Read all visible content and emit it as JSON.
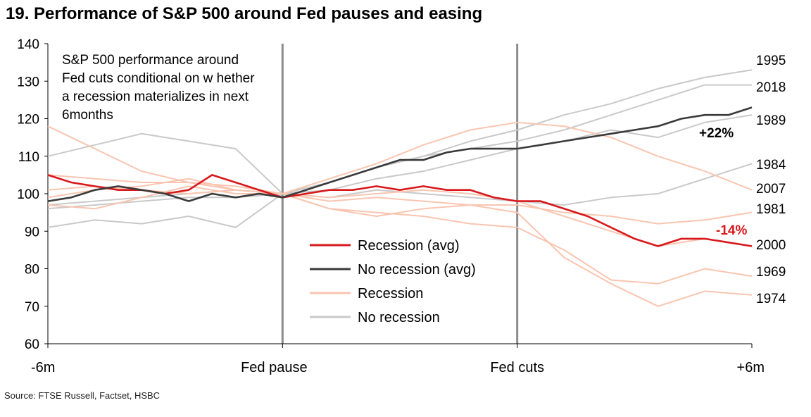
{
  "title": "19. Performance of S&P 500 around Fed pauses and easing",
  "source": "Source: FTSE Russell, Factset, HSBC",
  "chart_data": {
    "type": "line",
    "annotation_lines": [
      "S&P 500 performance around",
      "Fed cuts conditional on w hether",
      "a recession materializes in next",
      "6months"
    ],
    "ylim": [
      60,
      140
    ],
    "yticks": [
      60,
      70,
      80,
      90,
      100,
      110,
      120,
      130,
      140
    ],
    "x_range": [
      -2,
      1
    ],
    "x_ticks": [
      {
        "x": -2,
        "label": "-6m"
      },
      {
        "x": -1,
        "label": "Fed pause"
      },
      {
        "x": 0,
        "label": "Fed cuts"
      },
      {
        "x": 1,
        "label": "+6m"
      }
    ],
    "vlines": [
      -1,
      0
    ],
    "legend": {
      "placement": "center",
      "entries": [
        {
          "label": "Recession (avg)",
          "color": "#d7191c"
        },
        {
          "label": "No recession (avg)",
          "color": "#3a3a3a"
        },
        {
          "label": "Recession",
          "color": "#f9c5b0"
        },
        {
          "label": "No recession",
          "color": "#c9c9c9"
        }
      ]
    },
    "series": [
      {
        "label": "1995",
        "group": "No recession",
        "color": "#c9c9c9",
        "x": [
          -2,
          -1.8,
          -1.6,
          -1.4,
          -1.2,
          -1,
          -0.8,
          -0.6,
          -0.4,
          -0.2,
          0,
          0.2,
          0.4,
          0.6,
          0.8,
          1
        ],
        "y": [
          97,
          98,
          99,
          100,
          101,
          100,
          103,
          107,
          110,
          114,
          117,
          121,
          124,
          128,
          131,
          133
        ]
      },
      {
        "label": "2018",
        "group": "No recession",
        "color": "#c9c9c9",
        "x": [
          -2,
          -1.8,
          -1.6,
          -1.4,
          -1.2,
          -1,
          -0.8,
          -0.6,
          -0.4,
          -0.2,
          0,
          0.2,
          0.4,
          0.6,
          0.8,
          1
        ],
        "y": [
          96,
          97,
          98,
          99,
          99,
          100,
          103,
          107,
          110,
          112,
          114,
          117,
          121,
          125,
          129,
          129
        ]
      },
      {
        "label": "1989",
        "group": "No recession",
        "color": "#c9c9c9",
        "x": [
          -2,
          -1.8,
          -1.6,
          -1.4,
          -1.2,
          -1,
          -0.8,
          -0.6,
          -0.4,
          -0.2,
          0,
          0.2,
          0.4,
          0.6,
          0.8,
          1
        ],
        "y": [
          110,
          113,
          116,
          114,
          112,
          100,
          101,
          104,
          106,
          109,
          112,
          114,
          117,
          115,
          119,
          121
        ]
      },
      {
        "label": "1984",
        "group": "No recession",
        "color": "#c9c9c9",
        "x": [
          -2,
          -1.8,
          -1.6,
          -1.4,
          -1.2,
          -1,
          -0.8,
          -0.6,
          -0.4,
          -0.2,
          0,
          0.2,
          0.4,
          0.6,
          0.8,
          1
        ],
        "y": [
          91,
          93,
          92,
          94,
          91,
          100,
          99,
          101,
          100,
          99,
          98,
          97,
          99,
          100,
          104,
          108
        ]
      },
      {
        "label": "2007",
        "group": "Recession",
        "color": "#f9c5b0",
        "x": [
          -2,
          -1.8,
          -1.6,
          -1.4,
          -1.2,
          -1,
          -0.8,
          -0.6,
          -0.4,
          -0.2,
          0,
          0.2,
          0.4,
          0.6,
          0.8,
          1
        ],
        "y": [
          118,
          112,
          106,
          103,
          101,
          100,
          104,
          108,
          113,
          117,
          119,
          118,
          115,
          110,
          106,
          101
        ]
      },
      {
        "label": "1981",
        "group": "Recession",
        "color": "#f9c5b0",
        "x": [
          -2,
          -1.8,
          -1.6,
          -1.4,
          -1.2,
          -1,
          -0.8,
          -0.6,
          -0.4,
          -0.2,
          0,
          0.2,
          0.4,
          0.6,
          0.8,
          1
        ],
        "y": [
          101,
          102,
          101,
          100,
          101,
          100,
          98,
          99,
          98,
          97,
          97,
          95,
          94,
          92,
          93,
          95
        ]
      },
      {
        "label": "2000",
        "group": "Recession",
        "color": "#f9c5b0",
        "x": [
          -2,
          -1.8,
          -1.6,
          -1.4,
          -1.2,
          -1,
          -0.8,
          -0.6,
          -0.4,
          -0.2,
          0,
          0.2,
          0.4,
          0.6,
          0.8,
          1
        ],
        "y": [
          99,
          101,
          102,
          104,
          101,
          100,
          99,
          100,
          101,
          100,
          98,
          94,
          90,
          86,
          88,
          86
        ]
      },
      {
        "label": "1969",
        "group": "Recession",
        "color": "#f9c5b0",
        "x": [
          -2,
          -1.8,
          -1.6,
          -1.4,
          -1.2,
          -1,
          -0.8,
          -0.6,
          -0.4,
          -0.2,
          0,
          0.2,
          0.4,
          0.6,
          0.8,
          1
        ],
        "y": [
          105,
          104,
          103,
          103,
          102,
          100,
          96,
          95,
          94,
          92,
          91,
          85,
          77,
          76,
          80,
          78
        ]
      },
      {
        "label": "1974",
        "group": "Recession",
        "color": "#f9c5b0",
        "x": [
          -2,
          -1.8,
          -1.6,
          -1.4,
          -1.2,
          -1,
          -0.8,
          -0.6,
          -0.4,
          -0.2,
          0,
          0.2,
          0.4,
          0.6,
          0.8,
          1
        ],
        "y": [
          97,
          96,
          99,
          102,
          100,
          100,
          96,
          94,
          96,
          97,
          95,
          83,
          76,
          70,
          74,
          73
        ]
      },
      {
        "label": "Recession (avg)",
        "group": "Recession (avg)",
        "color": "#d7191c",
        "x": [
          -2,
          -1.9,
          -1.8,
          -1.7,
          -1.6,
          -1.5,
          -1.4,
          -1.3,
          -1.2,
          -1.1,
          -1,
          -0.9,
          -0.8,
          -0.7,
          -0.6,
          -0.5,
          -0.4,
          -0.3,
          -0.2,
          -0.1,
          0,
          0.1,
          0.2,
          0.3,
          0.4,
          0.5,
          0.6,
          0.7,
          0.8,
          0.9,
          1
        ],
        "y": [
          105,
          103,
          102,
          101,
          101,
          100,
          101,
          105,
          103,
          101,
          99,
          100,
          101,
          101,
          102,
          101,
          102,
          101,
          101,
          99,
          98,
          98,
          96,
          94,
          91,
          88,
          86,
          88,
          88,
          87,
          86
        ]
      },
      {
        "label": "No recession (avg)",
        "group": "No recession (avg)",
        "color": "#3a3a3a",
        "x": [
          -2,
          -1.9,
          -1.8,
          -1.7,
          -1.6,
          -1.5,
          -1.4,
          -1.3,
          -1.2,
          -1.1,
          -1,
          -0.9,
          -0.8,
          -0.7,
          -0.6,
          -0.5,
          -0.4,
          -0.3,
          -0.2,
          -0.1,
          0,
          0.1,
          0.2,
          0.3,
          0.4,
          0.5,
          0.6,
          0.7,
          0.8,
          0.9,
          1
        ],
        "y": [
          98,
          99,
          101,
          102,
          101,
          100,
          98,
          100,
          99,
          100,
          99,
          101,
          103,
          105,
          107,
          109,
          109,
          111,
          112,
          112,
          112,
          113,
          114,
          115,
          116,
          117,
          118,
          120,
          121,
          121,
          123
        ]
      }
    ],
    "end_labels": [
      "1995",
      "2018",
      "1989",
      "1984",
      "2007",
      "1981",
      "2000",
      "1969",
      "1974"
    ],
    "end_annotations": [
      {
        "text": "+22%",
        "color": "#000000"
      },
      {
        "text": "-14%",
        "color": "#d7191c"
      }
    ]
  }
}
